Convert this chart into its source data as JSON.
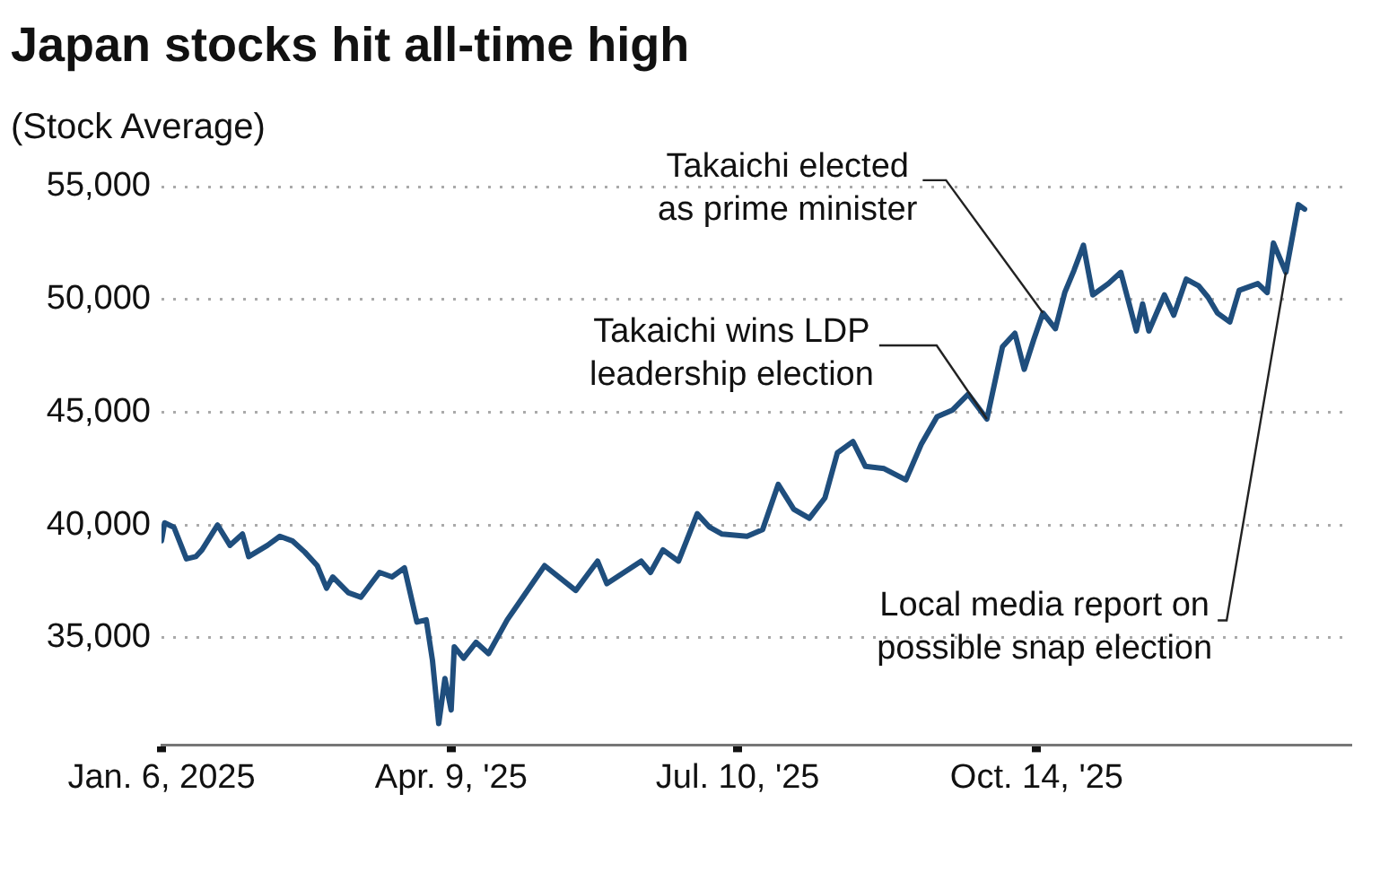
{
  "chart_data": {
    "type": "line",
    "title": "Japan stocks hit all-time high",
    "subtitle": "(Stock Average)",
    "x": [
      "2025-01-06",
      "2025-01-07",
      "2025-01-10",
      "2025-01-14",
      "2025-01-17",
      "2025-01-19",
      "2025-01-24",
      "2025-01-28",
      "2025-02-01",
      "2025-02-03",
      "2025-02-09",
      "2025-02-13",
      "2025-02-17",
      "2025-02-21",
      "2025-02-25",
      "2025-02-28",
      "2025-03-02",
      "2025-03-07",
      "2025-03-11",
      "2025-03-17",
      "2025-03-21",
      "2025-03-25",
      "2025-03-29",
      "2025-04-01",
      "2025-04-03",
      "2025-04-05",
      "2025-04-07",
      "2025-04-09",
      "2025-04-10",
      "2025-04-13",
      "2025-04-17",
      "2025-04-21",
      "2025-04-27",
      "2025-05-02",
      "2025-05-09",
      "2025-05-19",
      "2025-05-26",
      "2025-05-29",
      "2025-06-09",
      "2025-06-12",
      "2025-06-16",
      "2025-06-21",
      "2025-06-27",
      "2025-07-01",
      "2025-07-05",
      "2025-07-13",
      "2025-07-18",
      "2025-07-23",
      "2025-07-28",
      "2025-08-02",
      "2025-08-07",
      "2025-08-11",
      "2025-08-16",
      "2025-08-20",
      "2025-08-26",
      "2025-09-02",
      "2025-09-07",
      "2025-09-12",
      "2025-09-17",
      "2025-09-22",
      "2025-09-28",
      "2025-10-03",
      "2025-10-07",
      "2025-10-10",
      "2025-10-13",
      "2025-10-16",
      "2025-10-20",
      "2025-10-23",
      "2025-10-26",
      "2025-10-29",
      "2025-11-01",
      "2025-11-06",
      "2025-11-10",
      "2025-11-15",
      "2025-11-17",
      "2025-11-19",
      "2025-11-24",
      "2025-11-27",
      "2025-12-01",
      "2025-12-05",
      "2025-12-08",
      "2025-12-11",
      "2025-12-15",
      "2025-12-18",
      "2025-12-24",
      "2025-12-27",
      "2025-12-29",
      "2026-01-02",
      "2026-01-06",
      "2026-01-08"
    ],
    "series": [
      {
        "color": "#1f4e7d",
        "values": [
          39300,
          40100,
          39900,
          38500,
          38600,
          38900,
          40000,
          39100,
          39600,
          38600,
          39100,
          39500,
          39300,
          38800,
          38200,
          37200,
          37700,
          37000,
          36800,
          37900,
          37700,
          38100,
          35700,
          35800,
          34000,
          31200,
          33200,
          31800,
          34600,
          34100,
          34800,
          34300,
          35800,
          36800,
          38200,
          37100,
          38400,
          37400,
          38400,
          37900,
          38900,
          38400,
          40500,
          39900,
          39600,
          39500,
          39800,
          41800,
          40700,
          40300,
          41200,
          43200,
          43700,
          42600,
          42500,
          42000,
          43600,
          44800,
          45100,
          45800,
          44700,
          47900,
          48500,
          46900,
          48200,
          49400,
          48700,
          50300,
          51300,
          52400,
          50200,
          50700,
          51200,
          48600,
          49800,
          48600,
          50200,
          49300,
          50900,
          50600,
          50100,
          49400,
          49000,
          50400,
          50700,
          50300,
          52500,
          51200,
          54200,
          54000
        ]
      }
    ],
    "xlim": [
      "2025-01-06",
      "2026-01-23"
    ],
    "xticks": [
      {
        "value": "2025-01-06",
        "label": "Jan. 6, 2025"
      },
      {
        "value": "2025-04-09",
        "label": "Apr. 9, '25"
      },
      {
        "value": "2025-07-10",
        "label": "Jul. 10, '25"
      },
      {
        "value": "2025-10-14",
        "label": "Oct. 14, '25"
      }
    ],
    "ylim": [
      30250,
      55000
    ],
    "yticks": [
      {
        "value": 35000,
        "label": "35,000"
      },
      {
        "value": 40000,
        "label": "40,000"
      },
      {
        "value": 45000,
        "label": "45,000"
      },
      {
        "value": 50000,
        "label": "50,000"
      },
      {
        "value": 55000,
        "label": "55,000"
      }
    ],
    "grid": "y",
    "legend": false,
    "marker": "none",
    "line_style": "solid",
    "annotations": [
      {
        "text": "Takaichi wins LDP\nleadership election",
        "x": "2025-09-28",
        "y": 44700
      },
      {
        "text": "Takaichi elected\nas prime minister",
        "x": "2025-10-16",
        "y": 49400
      },
      {
        "text": "Local media report on\npossible snap election",
        "x": "2026-01-02",
        "y": 51200
      }
    ]
  }
}
